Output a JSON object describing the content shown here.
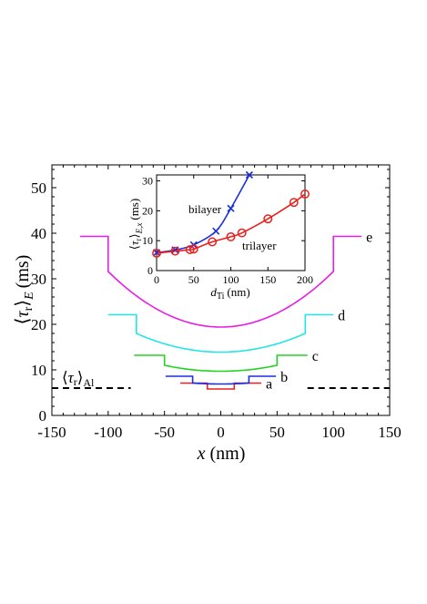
{
  "chart_data": [
    {
      "type": "line",
      "xlabel_main": "x",
      "xlabel_unit": "(nm)",
      "ylabel_main": "τ",
      "ylabel_sub": "r",
      "ylabel_subscript": "E",
      "ylabel_unit": "(ms)",
      "xlim": [
        -150,
        150
      ],
      "ylim": [
        0,
        55
      ],
      "xticks": [
        "-150",
        "-100",
        "-50",
        "0",
        "50",
        "100",
        "150"
      ],
      "yticks": [
        "0",
        "10",
        "20",
        "30",
        "40",
        "50"
      ],
      "reference": {
        "label_main": "τ",
        "label_sub": "r",
        "label_subscript": "Al",
        "value": 6.0,
        "segments": [
          [
            -150,
            -80
          ],
          [
            77,
            150
          ]
        ],
        "color": "#000000",
        "style": "dashed"
      },
      "series": [
        {
          "name": "a",
          "color": "#e8211f",
          "half_width": 12,
          "wire_halfspan": 36,
          "outer_value": 7.1,
          "inner_value": 5.8,
          "curvature": 0
        },
        {
          "name": "b",
          "color": "#1a2fe0",
          "half_width": 25,
          "wire_halfspan": 49,
          "outer_value": 8.6,
          "inner_value": 6.9,
          "curvature": 0.2
        },
        {
          "name": "c",
          "color": "#22d422",
          "half_width": 50,
          "wire_halfspan": 77,
          "outer_value": 13.2,
          "inner_value": 9.7,
          "curvature": 1.3
        },
        {
          "name": "d",
          "color": "#22e6e6",
          "half_width": 75,
          "wire_halfspan": 100,
          "outer_value": 22.1,
          "inner_value": 13.9,
          "curvature": 4.1
        },
        {
          "name": "e",
          "color": "#e61ee6",
          "half_width": 100,
          "wire_halfspan": 125,
          "outer_value": 39.3,
          "inner_value": 19.4,
          "curvature": 12.2
        }
      ]
    },
    {
      "type": "line",
      "xlabel_main": "d",
      "xlabel_sub": "Ti",
      "xlabel_unit": "(nm)",
      "ylabel_main": "τ",
      "ylabel_sub": "r",
      "ylabel_subscript": "E,x",
      "ylabel_unit": "(ms)",
      "xlim": [
        0,
        200
      ],
      "ylim": [
        0,
        32
      ],
      "xticks": [
        "0",
        "50",
        "100",
        "150",
        "200"
      ],
      "yticks": [
        "0",
        "10",
        "20",
        "30"
      ],
      "series": [
        {
          "name": "bilayer",
          "color": "#1a2fe0",
          "marker": "x",
          "x": [
            0,
            25,
            50,
            80,
            100,
            125
          ],
          "y": [
            6.0,
            6.9,
            8.6,
            13.2,
            20.8,
            32.0
          ]
        },
        {
          "name": "trilayer",
          "color": "#e8211f",
          "marker": "circle",
          "x": [
            0,
            25,
            45,
            50,
            75,
            100,
            115,
            150,
            185,
            200
          ],
          "y": [
            5.8,
            6.5,
            7.0,
            7.2,
            9.6,
            11.3,
            12.6,
            17.3,
            22.8,
            25.6
          ]
        }
      ]
    }
  ]
}
